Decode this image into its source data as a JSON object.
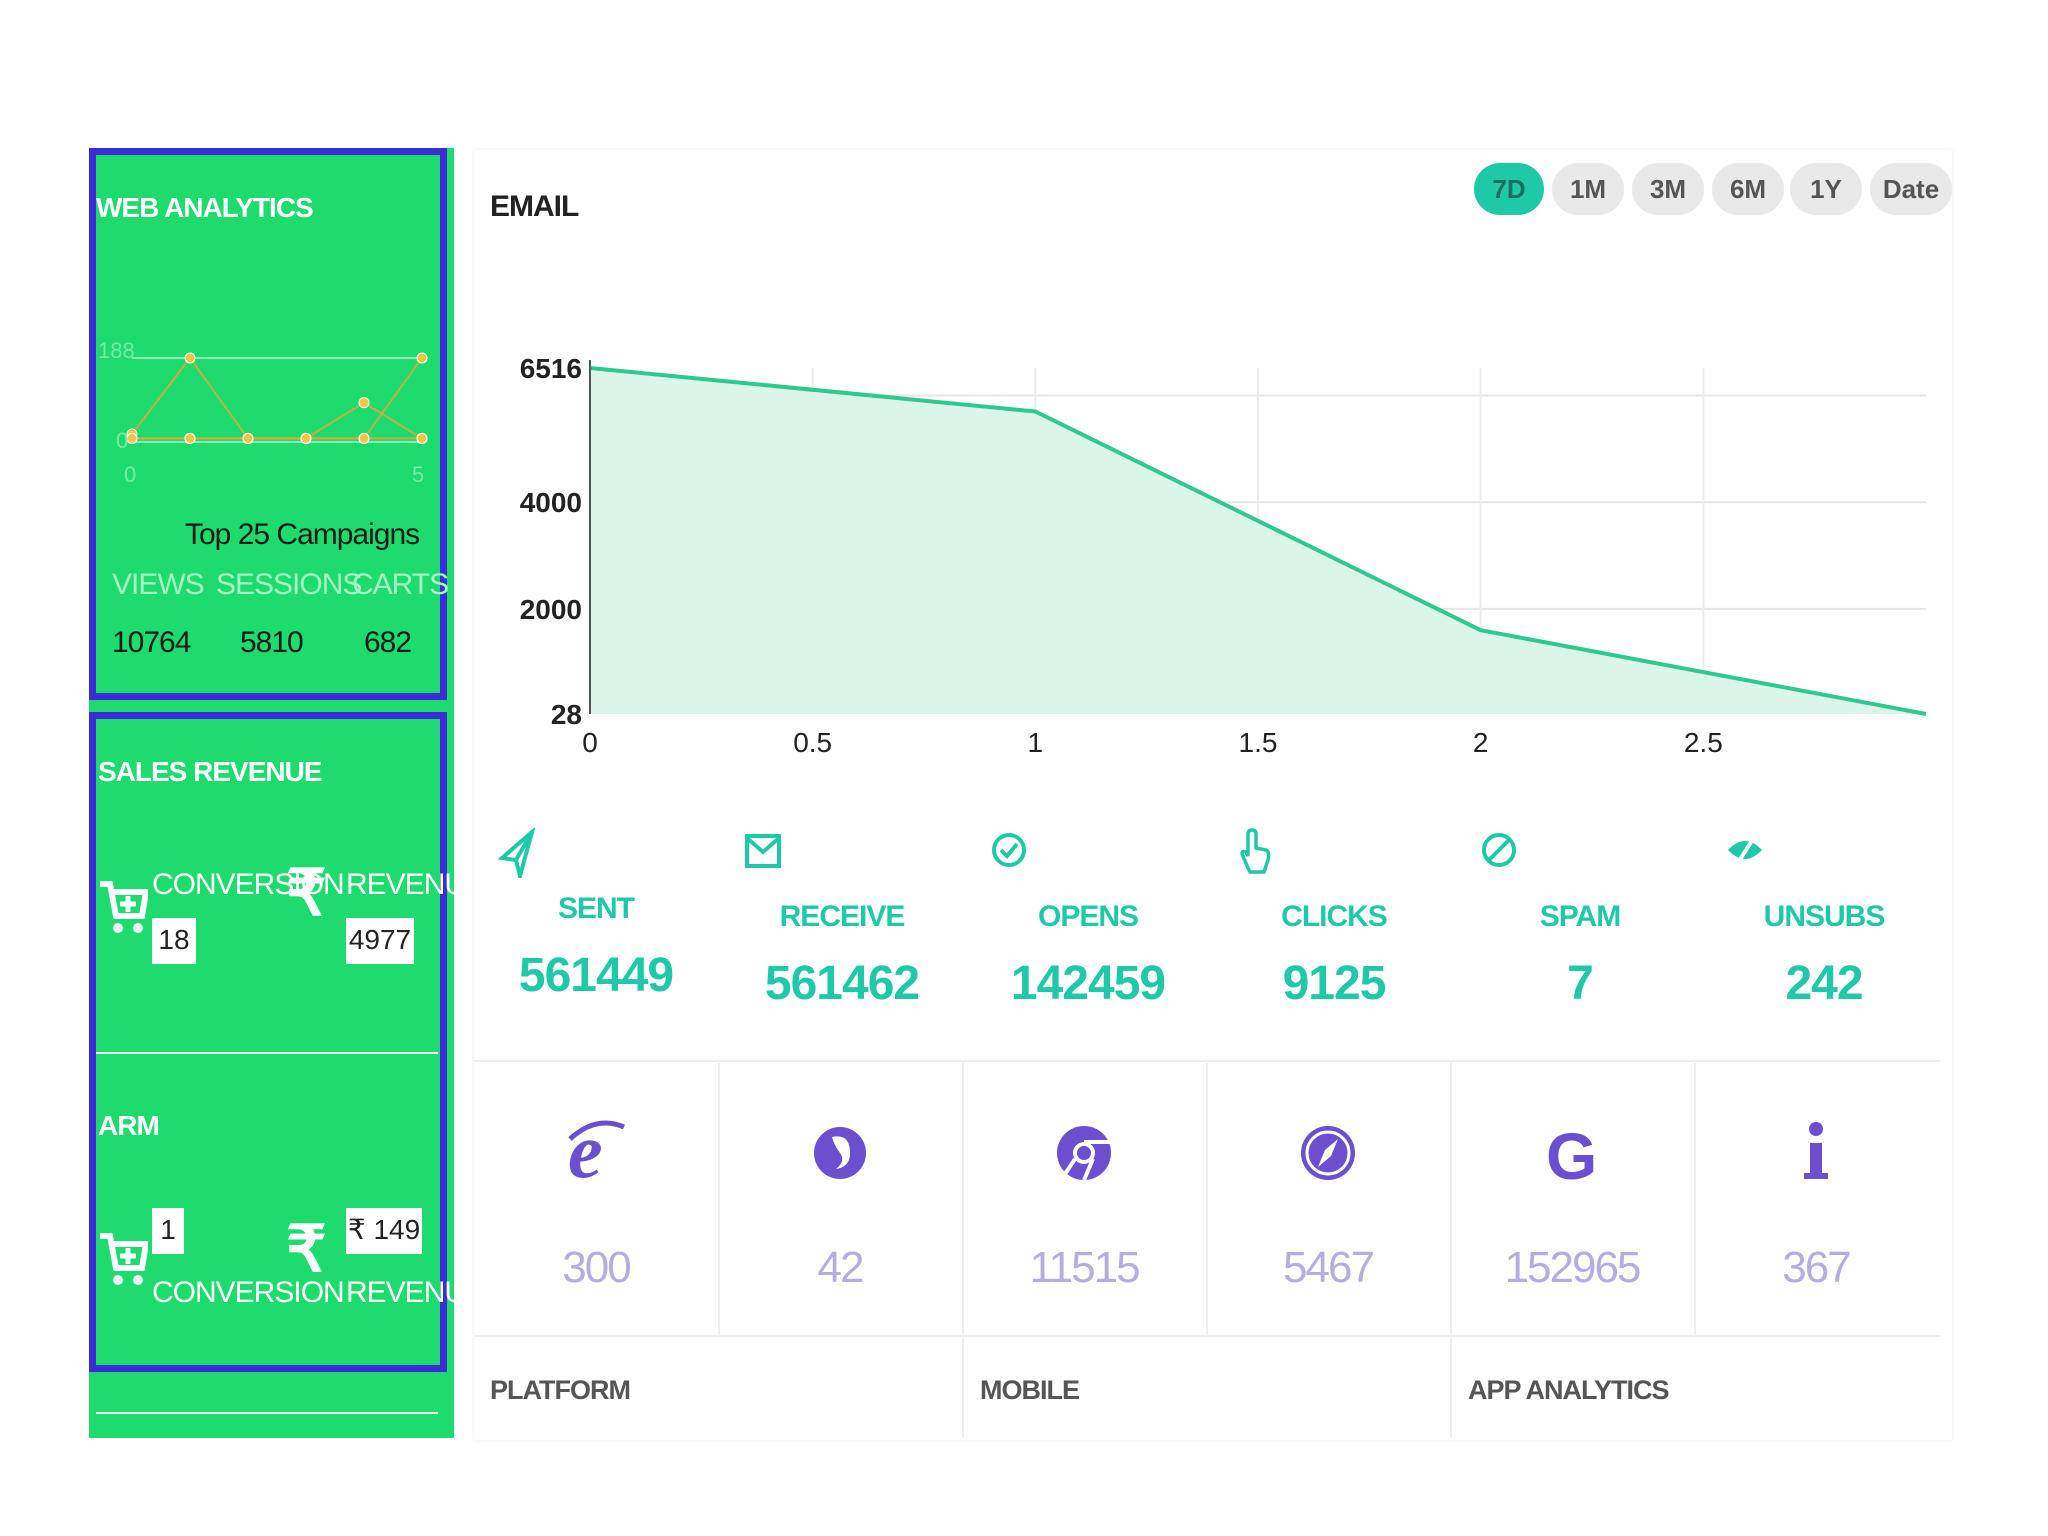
{
  "web_analytics": {
    "title": "WEB ANALYTICS",
    "mini_chart": {
      "type": "line",
      "x": [
        0,
        1,
        2,
        3,
        4,
        5
      ],
      "series": [
        {
          "values": [
            18,
            188,
            8,
            8,
            8,
            188
          ],
          "color": "#e8a33a"
        },
        {
          "values": [
            8,
            8,
            8,
            8,
            8,
            8
          ],
          "color": "#e8a33a"
        },
        {
          "values": [
            8,
            8,
            8,
            8,
            88,
            8
          ],
          "color": "#e8a33a"
        }
      ],
      "ylim": [
        0,
        188
      ],
      "y_top_label": "188",
      "y_bottom_label": "0",
      "x_left_label": "0",
      "x_right_label": "5"
    },
    "subtitle": "Top 25 Campaigns",
    "headers": [
      "VIEWS",
      "SESSIONS",
      "CARTS"
    ],
    "values": [
      "10764",
      "5810",
      "682"
    ]
  },
  "sales_revenue": {
    "title": "SALES REVENUE",
    "conversion_label": "CONVERSION",
    "conversion_value": "18",
    "revenue_label": "REVENUE",
    "revenue_value": "4977",
    "cart_icon": "cart-plus-icon",
    "rupee_icon": "rupee-icon",
    "rupee_symbol": "₹"
  },
  "arm": {
    "title": "ARM",
    "conversion_value": "1",
    "conversion_label": "CONVERSION",
    "revenue_value": "₹ 149",
    "revenue_label": "REVENUE",
    "rupee_symbol": "₹"
  },
  "email": {
    "title": "EMAIL",
    "ranges": [
      "7D",
      "1M",
      "3M",
      "6M",
      "1Y",
      "Date"
    ],
    "active_range": "7D",
    "accent": "#1fc9a8",
    "stats": [
      {
        "label": "SENT",
        "value": "561449",
        "icon": "paper-plane-icon"
      },
      {
        "label": "RECEIVE",
        "value": "561462",
        "icon": "envelope-icon"
      },
      {
        "label": "OPENS",
        "value": "142459",
        "icon": "check-circle-icon"
      },
      {
        "label": "CLICKS",
        "value": "9125",
        "icon": "pointer-hand-icon"
      },
      {
        "label": "SPAM",
        "value": "7",
        "icon": "ban-icon"
      },
      {
        "label": "UNSUBS",
        "value": "242",
        "icon": "eye-slash-icon"
      }
    ],
    "browsers": [
      {
        "icon": "internet-explorer-icon",
        "value": "300"
      },
      {
        "icon": "firefox-icon",
        "value": "42"
      },
      {
        "icon": "chrome-icon",
        "value": "11515"
      },
      {
        "icon": "safari-icon",
        "value": "5467"
      },
      {
        "icon": "google-icon",
        "value": "152965"
      },
      {
        "icon": "info-icon",
        "value": "367"
      }
    ],
    "footer": [
      "PLATFORM",
      "MOBILE",
      "APP ANALYTICS"
    ]
  },
  "chart_data": {
    "type": "area",
    "x": [
      0,
      1,
      2,
      3
    ],
    "values": [
      6516,
      5700,
      1600,
      28
    ],
    "xlim": [
      0,
      3
    ],
    "ylim": [
      28,
      6516
    ],
    "x_ticks": [
      "0",
      "0.5",
      "1",
      "1.5",
      "2",
      "2.5"
    ],
    "y_ticks": [
      "6516",
      "4000",
      "2000",
      "28"
    ],
    "grid": true,
    "color": "#2ec98f",
    "fill": "#dcf5ea"
  }
}
